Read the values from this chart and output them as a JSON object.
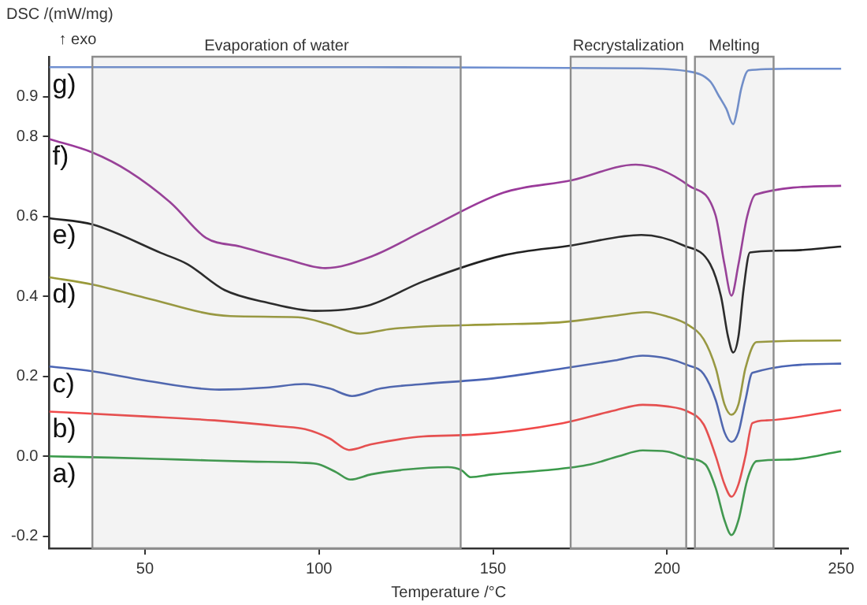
{
  "chart_data": {
    "type": "line",
    "ylabel": "DSC /(mW/mg)",
    "xlabel": "Temperature /°C",
    "xlim": [
      22.5,
      252
    ],
    "xticks": [
      50,
      100,
      150,
      200,
      250
    ],
    "ylim": [
      -0.23,
      1.0
    ],
    "yticks": [
      {
        "value": -0.2,
        "label": "-0.2"
      },
      {
        "value": 0,
        "label": "0.0"
      },
      0.2,
      0.4,
      0.6,
      0.8,
      0.9
    ],
    "grid": false,
    "legend": false,
    "series": [
      {
        "name": "a)",
        "color": "#3a9a4a",
        "x": [
          22.5,
          40,
          60,
          80,
          95,
          100,
          105,
          109,
          115,
          125,
          137,
          141,
          143.5,
          150,
          165,
          178,
          186,
          193,
          200,
          206,
          211,
          214,
          216.5,
          218.5,
          220.5,
          223,
          225.7,
          235,
          250
        ],
        "values": [
          0.0,
          -0.003,
          -0.008,
          -0.013,
          -0.016,
          -0.02,
          -0.04,
          -0.058,
          -0.045,
          -0.033,
          -0.027,
          -0.035,
          -0.052,
          -0.045,
          -0.035,
          -0.02,
          0.0,
          0.015,
          0.012,
          -0.005,
          -0.02,
          -0.08,
          -0.16,
          -0.197,
          -0.16,
          -0.06,
          -0.012,
          -0.008,
          0.013
        ]
      },
      {
        "name": "b)",
        "color": "#f04a4a",
        "x": [
          22.5,
          50,
          70,
          89,
          96,
          103,
          108.6,
          115,
          130,
          144,
          170,
          185,
          193,
          200,
          206,
          210.5,
          214,
          216.5,
          218.5,
          220.5,
          222.5,
          224.5,
          228.6,
          250
        ],
        "values": [
          0.112,
          0.1,
          0.09,
          0.075,
          0.068,
          0.045,
          0.016,
          0.03,
          0.05,
          0.054,
          0.083,
          0.115,
          0.129,
          0.125,
          0.112,
          0.08,
          0.0,
          -0.07,
          -0.101,
          -0.07,
          0.0,
          0.083,
          0.09,
          0.116
        ]
      },
      {
        "name": "c)",
        "color": "#4a64b4",
        "x": [
          22.5,
          34.8,
          50,
          71.3,
          85,
          95.7,
          103,
          109.5,
          117.8,
          130,
          150,
          170,
          185,
          193,
          200,
          206,
          210.5,
          214,
          216.5,
          218.5,
          220.5,
          222.5,
          224.5,
          250
        ],
        "values": [
          0.225,
          0.213,
          0.19,
          0.167,
          0.172,
          0.181,
          0.17,
          0.151,
          0.17,
          0.181,
          0.195,
          0.22,
          0.24,
          0.252,
          0.245,
          0.228,
          0.206,
          0.14,
          0.06,
          0.036,
          0.06,
          0.14,
          0.209,
          0.232
        ]
      },
      {
        "name": "d)",
        "color": "#9a9a3a",
        "x": [
          22.5,
          35,
          50,
          74.5,
          94,
          103,
          111.8,
          120,
          130,
          150,
          170,
          185,
          194,
          200,
          206,
          210.5,
          214,
          216.5,
          218.5,
          220.5,
          222.5,
          225.7,
          250
        ],
        "values": [
          0.448,
          0.43,
          0.397,
          0.351,
          0.348,
          0.33,
          0.307,
          0.318,
          0.325,
          0.33,
          0.336,
          0.352,
          0.361,
          0.35,
          0.329,
          0.293,
          0.22,
          0.13,
          0.104,
          0.13,
          0.22,
          0.286,
          0.29
        ]
      },
      {
        "name": "e)",
        "color": "#222222",
        "x": [
          22.5,
          35,
          54.6,
          62.2,
          72.9,
          85,
          98.8,
          114,
          130,
          153,
          172.7,
          192.6,
          204.7,
          212.4,
          215.5,
          217.5,
          219,
          220.5,
          222,
          223.8,
          235,
          250
        ],
        "values": [
          0.596,
          0.58,
          0.509,
          0.481,
          0.416,
          0.385,
          0.364,
          0.377,
          0.438,
          0.503,
          0.528,
          0.554,
          0.528,
          0.481,
          0.4,
          0.3,
          0.26,
          0.3,
          0.42,
          0.51,
          0.515,
          0.525
        ]
      },
      {
        "name": "f)",
        "color": "#9a3a9a",
        "x": [
          22.5,
          35,
          45.4,
          57.6,
          67.5,
          77.4,
          90,
          101.8,
          115,
          130,
          153,
          172.7,
          191,
          206.3,
          213.9,
          216.5,
          218.5,
          220.5,
          223,
          225.4,
          250
        ],
        "values": [
          0.794,
          0.76,
          0.713,
          0.633,
          0.547,
          0.525,
          0.495,
          0.471,
          0.5,
          0.564,
          0.66,
          0.691,
          0.73,
          0.677,
          0.604,
          0.48,
          0.402,
          0.48,
          0.6,
          0.655,
          0.677
        ]
      },
      {
        "name": "g)",
        "color": "#6f8fd0",
        "x": [
          22.5,
          100,
          150,
          191,
          206.3,
          212.4,
          215,
          217,
          219,
          220,
          221.3,
          223.4,
          235,
          250
        ],
        "values": [
          0.974,
          0.974,
          0.973,
          0.971,
          0.963,
          0.938,
          0.9,
          0.87,
          0.831,
          0.86,
          0.92,
          0.966,
          0.97,
          0.97
        ]
      }
    ],
    "bands": [
      {
        "axis": "x",
        "from": 34.9,
        "to": 140.7,
        "label": "Evaporation of water",
        "color": "#8c8c8c"
      },
      {
        "axis": "x",
        "from": 172.3,
        "to": 205.5,
        "label": "Recrystalization",
        "color": "#8c8c8c"
      },
      {
        "axis": "x",
        "from": 208,
        "to": 230.6,
        "label": "Melting",
        "color": "#8c8c8c"
      }
    ],
    "annotations": [
      "↑ exo"
    ]
  }
}
